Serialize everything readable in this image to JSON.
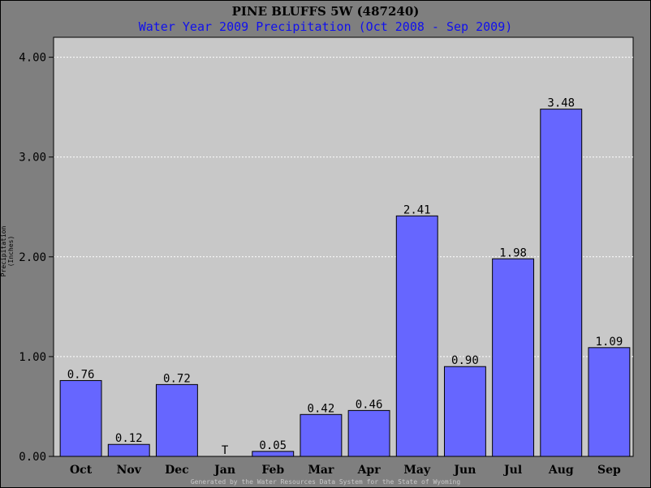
{
  "chart_data": {
    "type": "bar",
    "title": "PINE BLUFFS 5W (487240)",
    "subtitle": "Water Year 2009 Precipitation (Oct 2008 - Sep 2009)",
    "ylabel": "Precipitation (Inches)",
    "xlabel": "",
    "footer": "Generated by the Water Resources Data System for the State of Wyoming",
    "categories": [
      "Oct",
      "Nov",
      "Dec",
      "Jan",
      "Feb",
      "Mar",
      "Apr",
      "May",
      "Jun",
      "Jul",
      "Aug",
      "Sep"
    ],
    "values": [
      0.76,
      0.12,
      0.72,
      0,
      0.05,
      0.42,
      0.46,
      2.41,
      0.9,
      1.98,
      3.48,
      1.09
    ],
    "value_labels": [
      "0.76",
      "0.12",
      "0.72",
      "T",
      "0.05",
      "0.42",
      "0.46",
      "2.41",
      "0.90",
      "1.98",
      "3.48",
      "1.09"
    ],
    "ylim": [
      0,
      4.2
    ],
    "yticks": [
      0,
      1,
      2,
      3,
      4
    ],
    "ytick_labels": [
      "0.00",
      "1.00",
      "2.00",
      "3.00",
      "4.00"
    ],
    "grid": true,
    "colors": {
      "bar": "#6666ff",
      "plot_bg": "#c8c8c8",
      "page_bg": "#7f7f7f",
      "grid": "#ffffff",
      "subtitle": "#1010ee"
    }
  }
}
